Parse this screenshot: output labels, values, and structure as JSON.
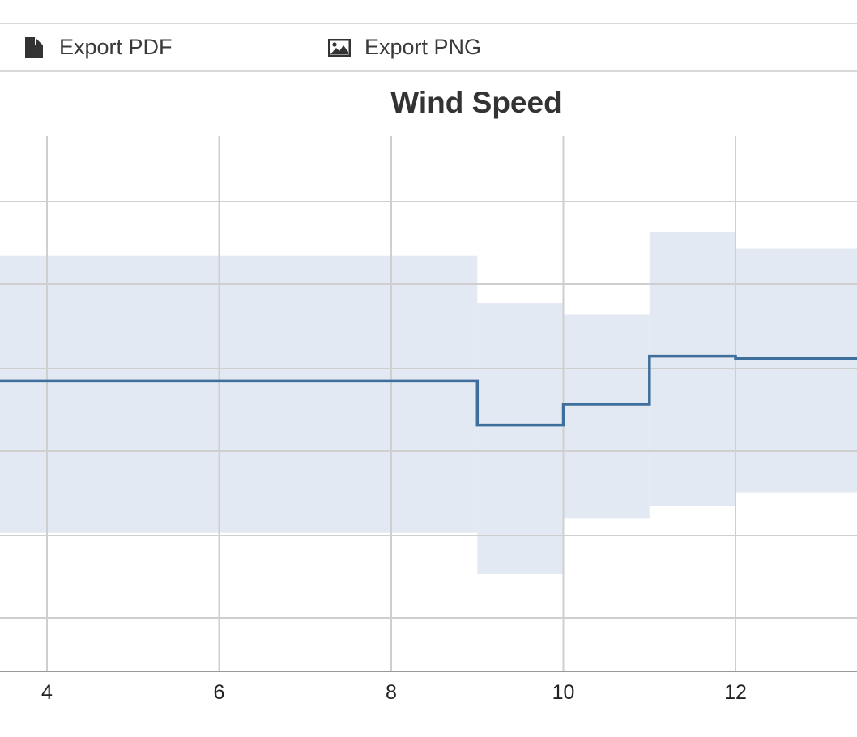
{
  "toolbar": {
    "export_pdf": {
      "label": "Export PDF",
      "icon": "file-icon"
    },
    "export_png": {
      "label": "Export PNG",
      "icon": "image-icon"
    }
  },
  "chart_data": {
    "type": "line",
    "title": "Wind Speed",
    "step": true,
    "x_ticks": [
      4,
      6,
      8,
      10,
      12
    ],
    "xlim": [
      3.45,
      13.95
    ],
    "grid": true,
    "line": {
      "color": "#3e6e9c",
      "points": [
        [
          3.45,
          5.85
        ],
        [
          9,
          5.85
        ],
        [
          9,
          5.32
        ],
        [
          10,
          5.32
        ],
        [
          10,
          5.57
        ],
        [
          11,
          5.57
        ],
        [
          11,
          6.15
        ],
        [
          12,
          6.15
        ],
        [
          12,
          6.12
        ],
        [
          13.95,
          6.12
        ]
      ]
    },
    "band": {
      "color": "#e3e9f2",
      "segments": [
        {
          "x0": 3.45,
          "x1": 9,
          "low": 4.02,
          "high": 7.36
        },
        {
          "x0": 9,
          "x1": 10,
          "low": 3.52,
          "high": 6.79
        },
        {
          "x0": 10,
          "x1": 11,
          "low": 4.19,
          "high": 6.65
        },
        {
          "x0": 11,
          "x1": 12,
          "low": 4.34,
          "high": 7.65
        },
        {
          "x0": 12,
          "x1": 13.95,
          "low": 4.5,
          "high": 7.45
        }
      ]
    }
  }
}
